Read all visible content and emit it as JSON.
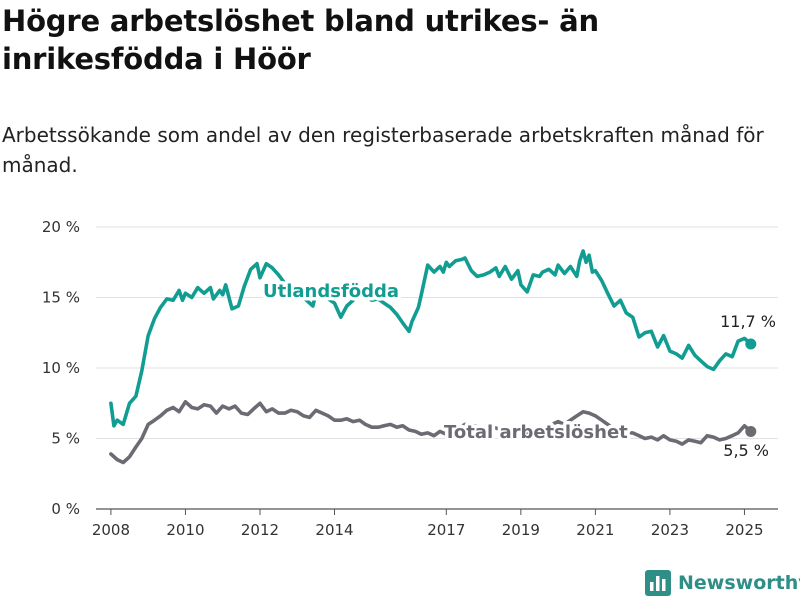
{
  "title": "Högre arbetslöshet bland utrikes- än inrikesfödda i Höör",
  "subtitle": "Arbetssökande som andel av den registerbaserade arbetskraften månad för månad.",
  "brand": "Newsworthy",
  "chart_data": {
    "type": "line",
    "ylim": [
      0,
      20
    ],
    "y_ticks": [
      0,
      5,
      10,
      15,
      20
    ],
    "y_tick_labels": [
      "0 %",
      "5 %",
      "10 %",
      "15 %",
      "20 %"
    ],
    "x_ticks": [
      2008,
      2010,
      2012,
      2014,
      2017,
      2019,
      2021,
      2023,
      2025
    ],
    "x_range": [
      2007.6,
      2025.9
    ],
    "grid": true,
    "series": [
      {
        "name": "Utlandsfödda",
        "color": "#129d93",
        "end_label": "11,7 %",
        "points": [
          [
            2008.0,
            7.5
          ],
          [
            2008.08,
            5.9
          ],
          [
            2008.17,
            6.3
          ],
          [
            2008.33,
            6.0
          ],
          [
            2008.5,
            7.5
          ],
          [
            2008.67,
            8.0
          ],
          [
            2008.83,
            9.8
          ],
          [
            2009.0,
            12.3
          ],
          [
            2009.17,
            13.5
          ],
          [
            2009.33,
            14.3
          ],
          [
            2009.5,
            14.9
          ],
          [
            2009.67,
            14.8
          ],
          [
            2009.83,
            15.5
          ],
          [
            2009.92,
            14.8
          ],
          [
            2010.0,
            15.3
          ],
          [
            2010.17,
            15.0
          ],
          [
            2010.33,
            15.7
          ],
          [
            2010.5,
            15.3
          ],
          [
            2010.67,
            15.7
          ],
          [
            2010.75,
            14.9
          ],
          [
            2010.92,
            15.5
          ],
          [
            2011.0,
            15.2
          ],
          [
            2011.08,
            15.9
          ],
          [
            2011.17,
            15.0
          ],
          [
            2011.25,
            14.2
          ],
          [
            2011.42,
            14.4
          ],
          [
            2011.58,
            15.8
          ],
          [
            2011.75,
            17.0
          ],
          [
            2011.92,
            17.4
          ],
          [
            2012.0,
            16.4
          ],
          [
            2012.17,
            17.4
          ],
          [
            2012.33,
            17.1
          ],
          [
            2012.5,
            16.6
          ],
          [
            2012.67,
            16.0
          ],
          [
            2012.83,
            15.5
          ],
          [
            2013.0,
            15.6
          ],
          [
            2013.25,
            14.8
          ],
          [
            2013.42,
            14.4
          ],
          [
            2013.5,
            15.3
          ],
          [
            2013.67,
            15.0
          ],
          [
            2013.83,
            14.9
          ],
          [
            2014.0,
            14.6
          ],
          [
            2014.17,
            13.6
          ],
          [
            2014.33,
            14.4
          ],
          [
            2014.5,
            14.8
          ],
          [
            2014.67,
            15.3
          ],
          [
            2014.83,
            15.1
          ],
          [
            2015.0,
            14.8
          ],
          [
            2015.17,
            14.9
          ],
          [
            2015.33,
            14.6
          ],
          [
            2015.5,
            14.3
          ],
          [
            2015.67,
            13.8
          ],
          [
            2015.83,
            13.2
          ],
          [
            2016.0,
            12.6
          ],
          [
            2016.08,
            13.3
          ],
          [
            2016.25,
            14.3
          ],
          [
            2016.33,
            15.2
          ],
          [
            2016.5,
            17.3
          ],
          [
            2016.67,
            16.8
          ],
          [
            2016.83,
            17.2
          ],
          [
            2016.92,
            16.8
          ],
          [
            2017.0,
            17.5
          ],
          [
            2017.08,
            17.2
          ],
          [
            2017.25,
            17.6
          ],
          [
            2017.42,
            17.7
          ],
          [
            2017.5,
            17.8
          ],
          [
            2017.67,
            16.9
          ],
          [
            2017.83,
            16.5
          ],
          [
            2018.0,
            16.6
          ],
          [
            2018.17,
            16.8
          ],
          [
            2018.33,
            17.1
          ],
          [
            2018.42,
            16.5
          ],
          [
            2018.58,
            17.2
          ],
          [
            2018.75,
            16.3
          ],
          [
            2018.92,
            16.9
          ],
          [
            2019.0,
            15.9
          ],
          [
            2019.17,
            15.4
          ],
          [
            2019.33,
            16.6
          ],
          [
            2019.5,
            16.5
          ],
          [
            2019.58,
            16.8
          ],
          [
            2019.75,
            17.0
          ],
          [
            2019.92,
            16.6
          ],
          [
            2020.0,
            17.3
          ],
          [
            2020.17,
            16.7
          ],
          [
            2020.33,
            17.2
          ],
          [
            2020.5,
            16.5
          ],
          [
            2020.58,
            17.6
          ],
          [
            2020.67,
            18.3
          ],
          [
            2020.75,
            17.5
          ],
          [
            2020.83,
            18.0
          ],
          [
            2020.92,
            16.8
          ],
          [
            2021.0,
            16.9
          ],
          [
            2021.17,
            16.2
          ],
          [
            2021.33,
            15.3
          ],
          [
            2021.5,
            14.4
          ],
          [
            2021.67,
            14.8
          ],
          [
            2021.83,
            13.9
          ],
          [
            2022.0,
            13.6
          ],
          [
            2022.17,
            12.2
          ],
          [
            2022.33,
            12.5
          ],
          [
            2022.5,
            12.6
          ],
          [
            2022.67,
            11.5
          ],
          [
            2022.83,
            12.3
          ],
          [
            2023.0,
            11.2
          ],
          [
            2023.17,
            11.0
          ],
          [
            2023.33,
            10.7
          ],
          [
            2023.5,
            11.6
          ],
          [
            2023.67,
            10.9
          ],
          [
            2023.83,
            10.5
          ],
          [
            2024.0,
            10.1
          ],
          [
            2024.17,
            9.9
          ],
          [
            2024.33,
            10.5
          ],
          [
            2024.5,
            11.0
          ],
          [
            2024.67,
            10.8
          ],
          [
            2024.83,
            11.9
          ],
          [
            2025.0,
            12.1
          ],
          [
            2025.17,
            11.7
          ]
        ]
      },
      {
        "name": "Total arbetslöshet",
        "color": "#6b6b73",
        "end_label": "5,5 %",
        "points": [
          [
            2008.0,
            3.9
          ],
          [
            2008.17,
            3.5
          ],
          [
            2008.33,
            3.3
          ],
          [
            2008.5,
            3.7
          ],
          [
            2008.67,
            4.4
          ],
          [
            2008.83,
            5.0
          ],
          [
            2009.0,
            6.0
          ],
          [
            2009.17,
            6.3
          ],
          [
            2009.33,
            6.6
          ],
          [
            2009.5,
            7.0
          ],
          [
            2009.67,
            7.2
          ],
          [
            2009.83,
            6.9
          ],
          [
            2010.0,
            7.6
          ],
          [
            2010.17,
            7.2
          ],
          [
            2010.33,
            7.1
          ],
          [
            2010.5,
            7.4
          ],
          [
            2010.67,
            7.3
          ],
          [
            2010.83,
            6.8
          ],
          [
            2011.0,
            7.3
          ],
          [
            2011.17,
            7.1
          ],
          [
            2011.33,
            7.3
          ],
          [
            2011.5,
            6.8
          ],
          [
            2011.67,
            6.7
          ],
          [
            2011.83,
            7.1
          ],
          [
            2012.0,
            7.5
          ],
          [
            2012.17,
            6.9
          ],
          [
            2012.33,
            7.1
          ],
          [
            2012.5,
            6.8
          ],
          [
            2012.67,
            6.8
          ],
          [
            2012.83,
            7.0
          ],
          [
            2013.0,
            6.9
          ],
          [
            2013.17,
            6.6
          ],
          [
            2013.33,
            6.5
          ],
          [
            2013.5,
            7.0
          ],
          [
            2013.67,
            6.8
          ],
          [
            2013.83,
            6.6
          ],
          [
            2014.0,
            6.3
          ],
          [
            2014.17,
            6.3
          ],
          [
            2014.33,
            6.4
          ],
          [
            2014.5,
            6.2
          ],
          [
            2014.67,
            6.3
          ],
          [
            2014.83,
            6.0
          ],
          [
            2015.0,
            5.8
          ],
          [
            2015.17,
            5.8
          ],
          [
            2015.33,
            5.9
          ],
          [
            2015.5,
            6.0
          ],
          [
            2015.67,
            5.8
          ],
          [
            2015.83,
            5.9
          ],
          [
            2016.0,
            5.6
          ],
          [
            2016.17,
            5.5
          ],
          [
            2016.33,
            5.3
          ],
          [
            2016.5,
            5.4
          ],
          [
            2016.67,
            5.2
          ],
          [
            2016.83,
            5.5
          ],
          [
            2017.0,
            5.3
          ],
          [
            2017.25,
            5.6
          ],
          [
            2017.5,
            6.0
          ],
          [
            2017.75,
            5.9
          ],
          [
            2018.0,
            5.7
          ],
          [
            2018.25,
            5.8
          ],
          [
            2018.5,
            5.6
          ],
          [
            2018.75,
            5.7
          ],
          [
            2019.0,
            5.5
          ],
          [
            2019.25,
            5.4
          ],
          [
            2019.5,
            5.6
          ],
          [
            2019.75,
            5.9
          ],
          [
            2020.0,
            6.2
          ],
          [
            2020.17,
            6.0
          ],
          [
            2020.33,
            6.3
          ],
          [
            2020.5,
            6.6
          ],
          [
            2020.67,
            6.9
          ],
          [
            2020.83,
            6.8
          ],
          [
            2021.0,
            6.6
          ],
          [
            2021.17,
            6.3
          ],
          [
            2021.33,
            6.0
          ],
          [
            2021.5,
            5.7
          ],
          [
            2021.67,
            5.5
          ],
          [
            2021.83,
            5.4
          ],
          [
            2022.0,
            5.4
          ],
          [
            2022.17,
            5.2
          ],
          [
            2022.33,
            5.0
          ],
          [
            2022.5,
            5.1
          ],
          [
            2022.67,
            4.9
          ],
          [
            2022.83,
            5.2
          ],
          [
            2023.0,
            4.9
          ],
          [
            2023.17,
            4.8
          ],
          [
            2023.33,
            4.6
          ],
          [
            2023.5,
            4.9
          ],
          [
            2023.67,
            4.8
          ],
          [
            2023.83,
            4.7
          ],
          [
            2024.0,
            5.2
          ],
          [
            2024.17,
            5.1
          ],
          [
            2024.33,
            4.9
          ],
          [
            2024.5,
            5.0
          ],
          [
            2024.67,
            5.2
          ],
          [
            2024.83,
            5.4
          ],
          [
            2025.0,
            5.9
          ],
          [
            2025.17,
            5.5
          ]
        ]
      }
    ]
  }
}
